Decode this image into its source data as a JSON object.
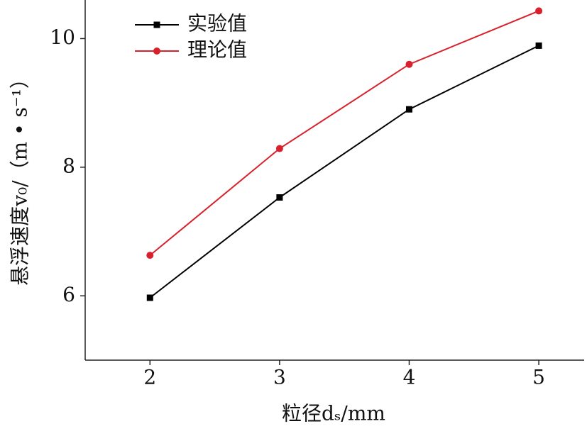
{
  "chart_data": {
    "type": "line",
    "xlabel": "粒径dₛ/mm",
    "ylabel": "悬浮速度v₀/（m • s⁻¹）",
    "x": [
      2,
      3,
      4,
      5
    ],
    "series": [
      {
        "name": "实验值",
        "color": "#000000",
        "marker": "square",
        "values": [
          5.97,
          7.53,
          8.9,
          9.89
        ]
      },
      {
        "name": "理论值",
        "color": "#d8212c",
        "marker": "circle",
        "values": [
          6.63,
          8.29,
          9.6,
          10.43
        ]
      }
    ],
    "xlim": [
      1.5,
      5.35
    ],
    "xticks": [
      2,
      3,
      4,
      5
    ],
    "ylim": [
      5,
      10.6
    ],
    "yticks": [
      6,
      8,
      10
    ],
    "legend": "upper left",
    "grid": false
  }
}
